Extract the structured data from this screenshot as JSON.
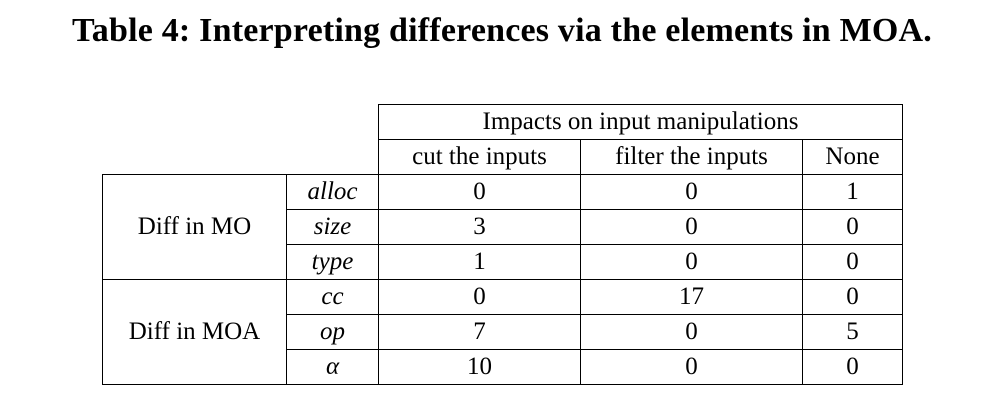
{
  "caption": "Table 4: Interpreting differences via the elements in MOA.",
  "table": {
    "header_group": "Impacts on input manipulations",
    "columns": [
      "cut the inputs",
      "filter the inputs",
      "None"
    ],
    "groups": [
      {
        "label": "Diff in MO",
        "rows": [
          {
            "element": "alloc",
            "values": [
              "0",
              "0",
              "1"
            ]
          },
          {
            "element": "size",
            "values": [
              "3",
              "0",
              "0"
            ]
          },
          {
            "element": "type",
            "values": [
              "1",
              "0",
              "0"
            ]
          }
        ]
      },
      {
        "label": "Diff in MOA",
        "rows": [
          {
            "element": "cc",
            "values": [
              "0",
              "17",
              "0"
            ]
          },
          {
            "element": "op",
            "values": [
              "7",
              "0",
              "5"
            ]
          },
          {
            "element": "α",
            "values": [
              "10",
              "0",
              "0"
            ]
          }
        ]
      }
    ]
  }
}
